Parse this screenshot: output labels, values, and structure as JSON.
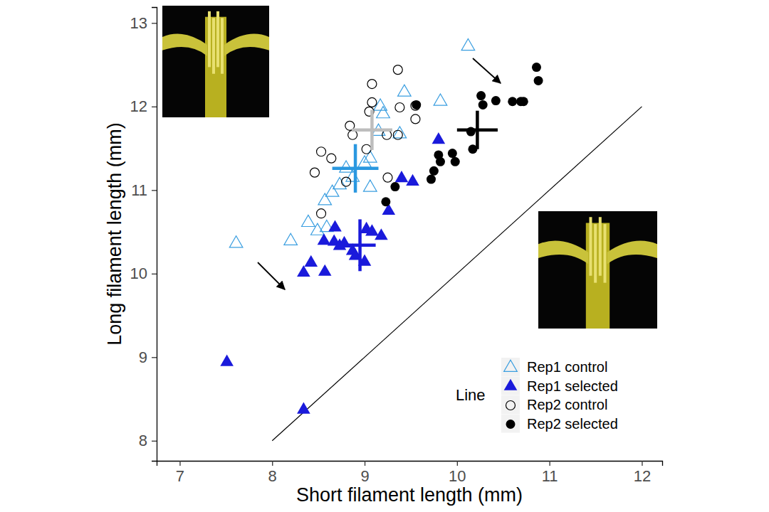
{
  "chart_data": {
    "type": "scatter",
    "x_label": "Short filament length (mm)",
    "y_label": "Long filament length (mm)",
    "xlim": [
      6.75,
      12.22
    ],
    "ylim": [
      7.76,
      13.19
    ],
    "xticks": [
      7,
      8,
      9,
      10,
      11,
      12
    ],
    "yticks": [
      8,
      9,
      10,
      11,
      12,
      13
    ],
    "grid": false,
    "legend": "bottom right",
    "legend_title": "Line",
    "reference_line": {
      "x": [
        8,
        12
      ],
      "y": [
        8,
        12
      ]
    },
    "series": [
      {
        "name": "Rep1 control",
        "color": "#3a9ee0",
        "marker": "triangle-open",
        "x": [
          7.61,
          8.2,
          8.39,
          8.49,
          8.59,
          8.57,
          8.65,
          8.73,
          8.8,
          8.87,
          9.0,
          9.06,
          9.06,
          9.17,
          9.2,
          9.38,
          9.43,
          9.82,
          10.12,
          9.15
        ],
        "values": [
          10.36,
          10.39,
          10.61,
          10.51,
          10.55,
          10.87,
          10.97,
          11.06,
          11.26,
          11.15,
          11.32,
          11.38,
          11.03,
          12.0,
          11.91,
          11.67,
          12.17,
          12.06,
          12.72,
          11.7
        ],
        "mean": {
          "x": 8.9,
          "y": 11.26,
          "x_error": 0.25,
          "y_error": 0.29,
          "color": "#2a98e0"
        }
      },
      {
        "name": "Rep1 selected",
        "color": "#1a1adb",
        "marker": "triangle",
        "x": [
          7.51,
          8.34,
          8.34,
          8.57,
          8.42,
          8.56,
          8.68,
          8.67,
          8.73,
          8.78,
          8.87,
          8.9,
          9.0,
          9.02,
          9.08,
          9.18,
          9.26,
          9.4,
          9.52,
          9.8
        ],
        "values": [
          8.94,
          8.37,
          10.01,
          10.02,
          10.13,
          10.39,
          10.55,
          10.38,
          10.33,
          10.36,
          10.27,
          10.21,
          10.14,
          10.53,
          10.5,
          10.45,
          10.75,
          11.14,
          11.1,
          11.6
        ],
        "mean": {
          "x": 8.95,
          "y": 10.34,
          "x_error": 0.17,
          "y_error": 0.31,
          "color": "#1a1adb"
        }
      },
      {
        "name": "Rep2 control",
        "color": "#000000",
        "marker": "circle-open",
        "x": [
          8.53,
          8.46,
          8.53,
          8.64,
          8.8,
          8.84,
          8.87,
          9.05,
          9.08,
          9.08,
          9.02,
          9.24,
          9.25,
          9.36,
          9.36,
          9.38,
          9.55,
          9.55
        ],
        "values": [
          10.72,
          11.21,
          11.46,
          11.38,
          11.1,
          11.77,
          11.66,
          11.94,
          12.27,
          12.05,
          11.49,
          11.66,
          11.15,
          11.66,
          12.44,
          11.99,
          11.85,
          12.01
        ],
        "mean": {
          "x": 9.08,
          "y": 11.72,
          "x_error": 0.22,
          "y_error": 0.24,
          "color": "#bdbdbd"
        }
      },
      {
        "name": "Rep2 selected",
        "color": "#000000",
        "marker": "circle",
        "x": [
          9.23,
          9.33,
          9.56,
          9.72,
          9.75,
          9.8,
          9.82,
          9.95,
          9.98,
          10.15,
          10.17,
          10.26,
          10.28,
          10.42,
          10.6,
          10.69,
          10.72,
          10.86,
          10.88
        ],
        "values": [
          10.86,
          11.04,
          12.02,
          11.13,
          11.23,
          11.42,
          11.34,
          11.44,
          11.34,
          11.7,
          11.49,
          12.13,
          12.02,
          12.07,
          12.06,
          12.06,
          12.06,
          12.47,
          12.31
        ],
        "mean": {
          "x": 10.22,
          "y": 11.72,
          "x_error": 0.22,
          "y_error": 0.23,
          "color": "#000000"
        }
      }
    ]
  }
}
